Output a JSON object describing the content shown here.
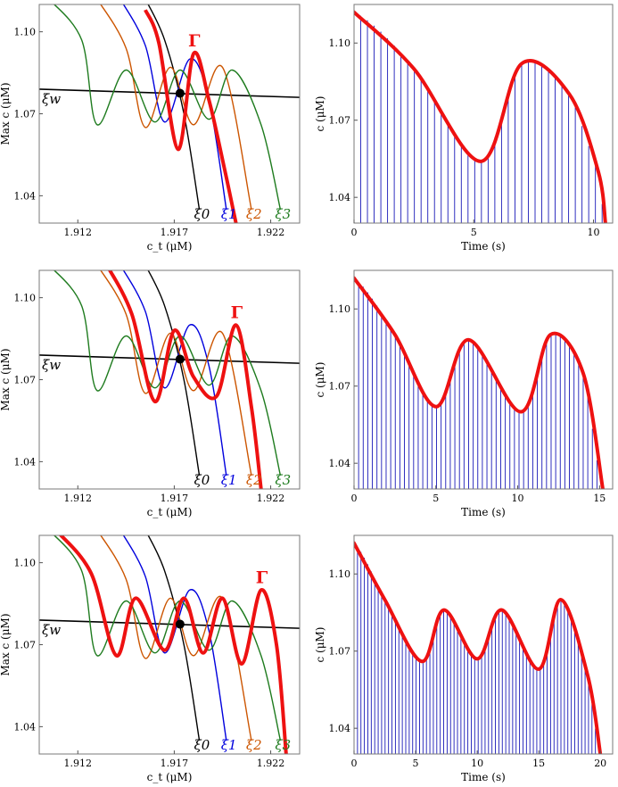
{
  "chart_data": [
    {
      "type": "line",
      "panel": "top-left",
      "xlabel": "c_t (μM)",
      "ylabel": "Max c (μM)",
      "xlim": [
        1.91,
        1.9235
      ],
      "ylim": [
        1.03,
        1.11
      ],
      "xticks": [
        1.912,
        1.917,
        1.922
      ],
      "yticks": [
        1.04,
        1.07,
        1.1
      ],
      "tick_labels_x": [
        "1.912",
        "1.917",
        "1.922"
      ],
      "tick_labels_y": [
        "1.04",
        "1.07",
        "1.10"
      ],
      "highlight_label": "Γ",
      "labels": {
        "xi0": "ξ0",
        "xi1": "ξ1",
        "xi2": "ξ2",
        "xi3": "ξ3",
        "xiw": "ξw"
      },
      "intersection_point": {
        "x": 1.9173,
        "y": 1.0775
      },
      "series": [
        {
          "key": "xiw",
          "color": "#000000",
          "x": [
            1.91,
            1.9235
          ],
          "y": [
            1.079,
            1.076
          ]
        },
        {
          "key": "xi0",
          "color": "#000000",
          "x": [
            1.9155,
            1.9165,
            1.9175,
            1.9183
          ],
          "y": [
            1.112,
            1.097,
            1.07,
            1.035
          ]
        },
        {
          "key": "xi1",
          "color": "#0000dd",
          "x": [
            1.9142,
            1.9155,
            1.9165,
            1.9178,
            1.9188,
            1.9197
          ],
          "y": [
            1.112,
            1.095,
            1.067,
            1.09,
            1.075,
            1.035
          ]
        },
        {
          "key": "xi2",
          "color": "#cc5500",
          "x": [
            1.913,
            1.9145,
            1.9155,
            1.9168,
            1.918,
            1.9195,
            1.921
          ],
          "y": [
            1.112,
            1.094,
            1.065,
            1.087,
            1.066,
            1.087,
            1.035
          ]
        },
        {
          "key": "xi3",
          "color": "#1e7b1e",
          "x": [
            1.9105,
            1.9122,
            1.913,
            1.9145,
            1.916,
            1.9173,
            1.9188,
            1.92,
            1.9215,
            1.9225
          ],
          "y": [
            1.112,
            1.097,
            1.066,
            1.086,
            1.067,
            1.086,
            1.068,
            1.086,
            1.066,
            1.035
          ]
        },
        {
          "key": "gamma",
          "color": "#ee1111",
          "x": [
            1.9155,
            1.9162,
            1.9172,
            1.918,
            1.9188,
            1.9196,
            1.9202
          ],
          "y": [
            1.108,
            1.096,
            1.057,
            1.092,
            1.075,
            1.05,
            1.03
          ]
        }
      ]
    },
    {
      "type": "line",
      "panel": "top-right",
      "xlabel": "Time (s)",
      "ylabel": "c (μM)",
      "xlim": [
        0,
        10.8
      ],
      "ylim": [
        1.03,
        1.115
      ],
      "xticks": [
        0,
        5,
        10
      ],
      "yticks": [
        1.04,
        1.07,
        1.1
      ],
      "tick_labels_x": [
        "0",
        "5",
        "10"
      ],
      "tick_labels_y": [
        "1.04",
        "1.07",
        "1.10"
      ],
      "oscillation_period": 0.28,
      "envelope": {
        "t": [
          0,
          2.5,
          5.3,
          7.0,
          9.0,
          10.2,
          10.5
        ],
        "c": [
          1.112,
          1.09,
          1.054,
          1.092,
          1.08,
          1.05,
          1.03
        ]
      }
    },
    {
      "type": "line",
      "panel": "middle-left",
      "xlabel": "c_t (μM)",
      "ylabel": "Max c (μM)",
      "xlim": [
        1.91,
        1.9235
      ],
      "ylim": [
        1.03,
        1.11
      ],
      "xticks": [
        1.912,
        1.917,
        1.922
      ],
      "yticks": [
        1.04,
        1.07,
        1.1
      ],
      "tick_labels_x": [
        "1.912",
        "1.917",
        "1.922"
      ],
      "tick_labels_y": [
        "1.04",
        "1.07",
        "1.10"
      ],
      "highlight_label": "Γ",
      "labels": {
        "xi0": "ξ0",
        "xi1": "ξ1",
        "xi2": "ξ2",
        "xi3": "ξ3",
        "xiw": "ξw"
      },
      "intersection_point": {
        "x": 1.9173,
        "y": 1.0775
      },
      "series": [
        {
          "key": "xiw",
          "color": "#000000",
          "x": [
            1.91,
            1.9235
          ],
          "y": [
            1.079,
            1.076
          ]
        },
        {
          "key": "xi0",
          "color": "#000000",
          "x": [
            1.9155,
            1.9165,
            1.9175,
            1.9183
          ],
          "y": [
            1.112,
            1.097,
            1.07,
            1.035
          ]
        },
        {
          "key": "xi1",
          "color": "#0000dd",
          "x": [
            1.9142,
            1.9155,
            1.9165,
            1.9178,
            1.9188,
            1.9197
          ],
          "y": [
            1.112,
            1.095,
            1.067,
            1.09,
            1.075,
            1.035
          ]
        },
        {
          "key": "xi2",
          "color": "#cc5500",
          "x": [
            1.913,
            1.9145,
            1.9155,
            1.9168,
            1.918,
            1.9195,
            1.921
          ],
          "y": [
            1.112,
            1.094,
            1.065,
            1.087,
            1.066,
            1.087,
            1.035
          ]
        },
        {
          "key": "xi3",
          "color": "#1e7b1e",
          "x": [
            1.9105,
            1.9122,
            1.913,
            1.9145,
            1.916,
            1.9173,
            1.9188,
            1.92,
            1.9215,
            1.9225
          ],
          "y": [
            1.112,
            1.097,
            1.066,
            1.086,
            1.067,
            1.086,
            1.068,
            1.086,
            1.066,
            1.035
          ]
        },
        {
          "key": "gamma",
          "color": "#ee1111",
          "x": [
            1.9135,
            1.9148,
            1.916,
            1.917,
            1.918,
            1.9192,
            1.9202,
            1.921,
            1.9215
          ],
          "y": [
            1.112,
            1.094,
            1.062,
            1.088,
            1.071,
            1.064,
            1.09,
            1.06,
            1.03
          ]
        }
      ]
    },
    {
      "type": "line",
      "panel": "middle-right",
      "xlabel": "Time (s)",
      "ylabel": "c (μM)",
      "xlim": [
        0,
        15.8
      ],
      "ylim": [
        1.03,
        1.115
      ],
      "xticks": [
        0,
        5,
        10,
        15
      ],
      "yticks": [
        1.04,
        1.07,
        1.1
      ],
      "tick_labels_x": [
        "0",
        "5",
        "10",
        "15"
      ],
      "tick_labels_y": [
        "1.04",
        "1.07",
        "1.10"
      ],
      "oscillation_period": 0.28,
      "envelope": {
        "t": [
          0,
          2.5,
          5.0,
          7.0,
          10.2,
          12.0,
          14.0,
          15.2
        ],
        "c": [
          1.112,
          1.09,
          1.062,
          1.088,
          1.06,
          1.09,
          1.075,
          1.03
        ]
      }
    },
    {
      "type": "line",
      "panel": "bottom-left",
      "xlabel": "c_t (μM)",
      "ylabel": "Max c (μM)",
      "xlim": [
        1.91,
        1.9235
      ],
      "ylim": [
        1.03,
        1.11
      ],
      "xticks": [
        1.912,
        1.917,
        1.922
      ],
      "yticks": [
        1.04,
        1.07,
        1.1
      ],
      "tick_labels_x": [
        "1.912",
        "1.917",
        "1.922"
      ],
      "tick_labels_y": [
        "1.04",
        "1.07",
        "1.10"
      ],
      "highlight_label": "Γ",
      "labels": {
        "xi0": "ξ0",
        "xi1": "ξ1",
        "xi2": "ξ2",
        "xi3": "ξ3",
        "xiw": "ξw"
      },
      "intersection_point": {
        "x": 1.9173,
        "y": 1.0775
      },
      "series": [
        {
          "key": "xiw",
          "color": "#000000",
          "x": [
            1.91,
            1.9235
          ],
          "y": [
            1.079,
            1.076
          ]
        },
        {
          "key": "xi0",
          "color": "#000000",
          "x": [
            1.9155,
            1.9165,
            1.9175,
            1.9183
          ],
          "y": [
            1.112,
            1.097,
            1.07,
            1.035
          ]
        },
        {
          "key": "xi1",
          "color": "#0000dd",
          "x": [
            1.9142,
            1.9155,
            1.9165,
            1.9178,
            1.9188,
            1.9197
          ],
          "y": [
            1.112,
            1.095,
            1.067,
            1.09,
            1.075,
            1.035
          ]
        },
        {
          "key": "xi2",
          "color": "#cc5500",
          "x": [
            1.913,
            1.9145,
            1.9155,
            1.9168,
            1.918,
            1.9195,
            1.921
          ],
          "y": [
            1.112,
            1.094,
            1.065,
            1.087,
            1.066,
            1.087,
            1.035
          ]
        },
        {
          "key": "xi3",
          "color": "#1e7b1e",
          "x": [
            1.9105,
            1.9122,
            1.913,
            1.9145,
            1.916,
            1.9173,
            1.9188,
            1.92,
            1.9215,
            1.9225
          ],
          "y": [
            1.112,
            1.097,
            1.066,
            1.086,
            1.067,
            1.086,
            1.068,
            1.086,
            1.066,
            1.035
          ]
        },
        {
          "key": "gamma",
          "color": "#ee1111",
          "x": [
            1.911,
            1.9127,
            1.914,
            1.915,
            1.9165,
            1.9175,
            1.9185,
            1.9195,
            1.9205,
            1.9215,
            1.9223,
            1.9228
          ],
          "y": [
            1.111,
            1.096,
            1.066,
            1.087,
            1.068,
            1.087,
            1.067,
            1.087,
            1.063,
            1.09,
            1.07,
            1.03
          ]
        }
      ]
    },
    {
      "type": "line",
      "panel": "bottom-right",
      "xlabel": "Time (s)",
      "ylabel": "c (μM)",
      "xlim": [
        0,
        21
      ],
      "ylim": [
        1.03,
        1.115
      ],
      "xticks": [
        0,
        5,
        10,
        15,
        20
      ],
      "yticks": [
        1.04,
        1.07,
        1.1
      ],
      "tick_labels_x": [
        "0",
        "5",
        "10",
        "15",
        "20"
      ],
      "tick_labels_y": [
        "1.04",
        "1.07",
        "1.10"
      ],
      "oscillation_period": 0.28,
      "envelope": {
        "t": [
          0,
          2.5,
          5.5,
          7.3,
          10.0,
          12.0,
          15.0,
          16.8,
          19.0,
          20.0
        ],
        "c": [
          1.112,
          1.09,
          1.066,
          1.086,
          1.067,
          1.086,
          1.063,
          1.09,
          1.06,
          1.03
        ]
      }
    }
  ]
}
